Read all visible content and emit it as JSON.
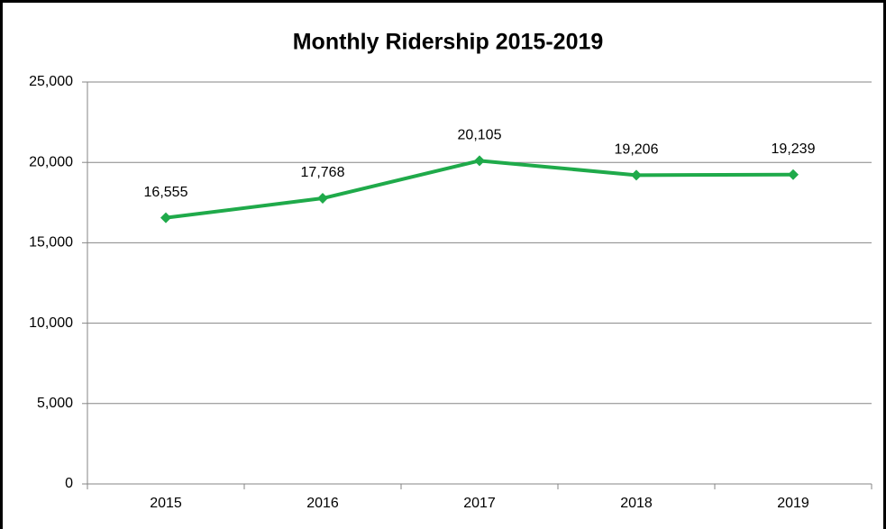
{
  "chart_data": {
    "type": "line",
    "title": "Monthly Ridership 2015-2019",
    "categories": [
      "2015",
      "2016",
      "2017",
      "2018",
      "2019"
    ],
    "values": [
      16555,
      17768,
      20105,
      19206,
      19239
    ],
    "value_labels": [
      "16,555",
      "17,768",
      "20,105",
      "19,206",
      "19,239"
    ],
    "color": "#1faa4a",
    "ylim": [
      0,
      25000
    ],
    "yticks": [
      0,
      {
        "value": 5000,
        "label": "5,000"
      },
      {
        "value": 10000,
        "label": "10,000"
      },
      {
        "value": 15000,
        "label": "15,000"
      },
      {
        "value": 20000,
        "label": "20,000"
      },
      {
        "value": 25000,
        "label": "25,000"
      }
    ],
    "grid": true
  }
}
